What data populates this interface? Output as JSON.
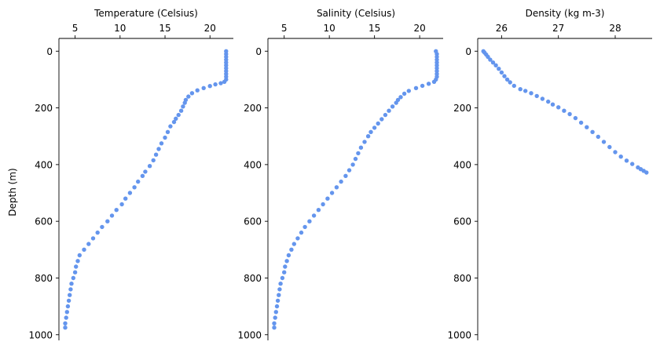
{
  "figure": {
    "ylabel": "Depth (m)"
  },
  "chart_data": [
    {
      "type": "scatter",
      "xlabel": "Temperature (Celsius)",
      "ylabel": "Depth (m)",
      "x_ticks": [
        5,
        10,
        15,
        20
      ],
      "y_ticks": [
        0,
        200,
        400,
        600,
        800,
        1000
      ],
      "xlim": [
        3.2,
        22.6
      ],
      "ylim": [
        1020,
        -45
      ],
      "y_inverted": true,
      "grid": false,
      "color": "#6495ED",
      "points": [
        [
          21.8,
          0
        ],
        [
          21.8,
          10
        ],
        [
          21.8,
          20
        ],
        [
          21.8,
          30
        ],
        [
          21.8,
          40
        ],
        [
          21.8,
          50
        ],
        [
          21.8,
          60
        ],
        [
          21.8,
          70
        ],
        [
          21.8,
          80
        ],
        [
          21.8,
          90
        ],
        [
          21.8,
          100
        ],
        [
          21.6,
          108
        ],
        [
          21.2,
          113
        ],
        [
          20.6,
          117
        ],
        [
          20.0,
          123
        ],
        [
          19.3,
          130
        ],
        [
          18.6,
          138
        ],
        [
          18.0,
          148
        ],
        [
          17.6,
          160
        ],
        [
          17.3,
          172
        ],
        [
          17.2,
          182
        ],
        [
          17.0,
          195
        ],
        [
          16.8,
          210
        ],
        [
          16.5,
          225
        ],
        [
          16.2,
          238
        ],
        [
          16.0,
          250
        ],
        [
          15.6,
          265
        ],
        [
          15.3,
          285
        ],
        [
          15.0,
          305
        ],
        [
          14.6,
          325
        ],
        [
          14.3,
          345
        ],
        [
          14.0,
          365
        ],
        [
          13.7,
          385
        ],
        [
          13.3,
          405
        ],
        [
          12.8,
          425
        ],
        [
          12.5,
          440
        ],
        [
          12.0,
          460
        ],
        [
          11.6,
          480
        ],
        [
          11.1,
          500
        ],
        [
          10.6,
          520
        ],
        [
          10.2,
          540
        ],
        [
          9.6,
          560
        ],
        [
          9.1,
          580
        ],
        [
          8.6,
          600
        ],
        [
          8.0,
          620
        ],
        [
          7.5,
          640
        ],
        [
          7.0,
          660
        ],
        [
          6.5,
          680
        ],
        [
          6.0,
          700
        ],
        [
          5.5,
          720
        ],
        [
          5.3,
          740
        ],
        [
          5.1,
          760
        ],
        [
          5.0,
          780
        ],
        [
          4.8,
          800
        ],
        [
          4.6,
          820
        ],
        [
          4.5,
          840
        ],
        [
          4.4,
          860
        ],
        [
          4.3,
          880
        ],
        [
          4.2,
          900
        ],
        [
          4.1,
          920
        ],
        [
          4.0,
          940
        ],
        [
          3.9,
          960
        ],
        [
          3.9,
          975
        ]
      ]
    },
    {
      "type": "scatter",
      "xlabel": "Salinity (Celsius)",
      "ylabel": "",
      "x_ticks": [
        5,
        10,
        15,
        20
      ],
      "y_ticks": [
        0,
        200,
        400,
        600,
        800,
        1000
      ],
      "xlim": [
        3.2,
        22.6
      ],
      "ylim": [
        1020,
        -45
      ],
      "y_inverted": true,
      "grid": false,
      "color": "#6495ED",
      "points": [
        [
          21.8,
          0
        ],
        [
          21.9,
          10
        ],
        [
          21.9,
          20
        ],
        [
          21.9,
          30
        ],
        [
          21.9,
          40
        ],
        [
          21.9,
          50
        ],
        [
          21.9,
          60
        ],
        [
          21.9,
          70
        ],
        [
          21.9,
          80
        ],
        [
          21.9,
          90
        ],
        [
          21.8,
          100
        ],
        [
          21.6,
          108
        ],
        [
          21.0,
          115
        ],
        [
          20.3,
          122
        ],
        [
          19.6,
          130
        ],
        [
          18.8,
          140
        ],
        [
          18.3,
          150
        ],
        [
          17.9,
          162
        ],
        [
          17.6,
          172
        ],
        [
          17.4,
          182
        ],
        [
          17.0,
          195
        ],
        [
          16.6,
          210
        ],
        [
          16.2,
          225
        ],
        [
          15.8,
          240
        ],
        [
          15.4,
          255
        ],
        [
          15.0,
          270
        ],
        [
          14.6,
          285
        ],
        [
          14.3,
          300
        ],
        [
          13.9,
          320
        ],
        [
          13.5,
          340
        ],
        [
          13.2,
          360
        ],
        [
          12.9,
          380
        ],
        [
          12.6,
          400
        ],
        [
          12.2,
          420
        ],
        [
          11.8,
          440
        ],
        [
          11.3,
          460
        ],
        [
          10.8,
          480
        ],
        [
          10.3,
          500
        ],
        [
          9.8,
          520
        ],
        [
          9.3,
          540
        ],
        [
          8.8,
          560
        ],
        [
          8.3,
          580
        ],
        [
          7.8,
          600
        ],
        [
          7.3,
          620
        ],
        [
          6.9,
          640
        ],
        [
          6.5,
          660
        ],
        [
          6.1,
          680
        ],
        [
          5.8,
          700
        ],
        [
          5.5,
          720
        ],
        [
          5.3,
          740
        ],
        [
          5.1,
          760
        ],
        [
          5.0,
          780
        ],
        [
          4.8,
          800
        ],
        [
          4.6,
          820
        ],
        [
          4.5,
          840
        ],
        [
          4.4,
          860
        ],
        [
          4.3,
          880
        ],
        [
          4.2,
          900
        ],
        [
          4.1,
          920
        ],
        [
          4.0,
          940
        ],
        [
          3.9,
          960
        ],
        [
          3.9,
          975
        ]
      ]
    },
    {
      "type": "scatter",
      "xlabel": "Density (kg m-3)",
      "ylabel": "",
      "x_ticks": [
        26,
        27,
        28
      ],
      "y_ticks": [
        0,
        200,
        400,
        600,
        800,
        1000
      ],
      "xlim": [
        25.58,
        28.65
      ],
      "ylim": [
        1020,
        -45
      ],
      "y_inverted": true,
      "grid": false,
      "color": "#6495ED",
      "points": [
        [
          25.68,
          0
        ],
        [
          25.7,
          5
        ],
        [
          25.73,
          12
        ],
        [
          25.76,
          20
        ],
        [
          25.8,
          30
        ],
        [
          25.85,
          40
        ],
        [
          25.9,
          50
        ],
        [
          25.95,
          62
        ],
        [
          26.0,
          75
        ],
        [
          26.05,
          88
        ],
        [
          26.1,
          100
        ],
        [
          26.15,
          110
        ],
        [
          26.22,
          122
        ],
        [
          26.33,
          134
        ],
        [
          26.42,
          140
        ],
        [
          26.52,
          148
        ],
        [
          26.62,
          158
        ],
        [
          26.72,
          168
        ],
        [
          26.82,
          178
        ],
        [
          26.9,
          188
        ],
        [
          27.0,
          198
        ],
        [
          27.1,
          210
        ],
        [
          27.2,
          222
        ],
        [
          27.3,
          236
        ],
        [
          27.4,
          252
        ],
        [
          27.5,
          268
        ],
        [
          27.6,
          285
        ],
        [
          27.7,
          302
        ],
        [
          27.8,
          320
        ],
        [
          27.9,
          338
        ],
        [
          28.0,
          356
        ],
        [
          28.1,
          372
        ],
        [
          28.2,
          386
        ],
        [
          28.3,
          398
        ],
        [
          28.4,
          410
        ],
        [
          28.45,
          416
        ],
        [
          28.5,
          422
        ],
        [
          28.55,
          428
        ]
      ]
    }
  ]
}
